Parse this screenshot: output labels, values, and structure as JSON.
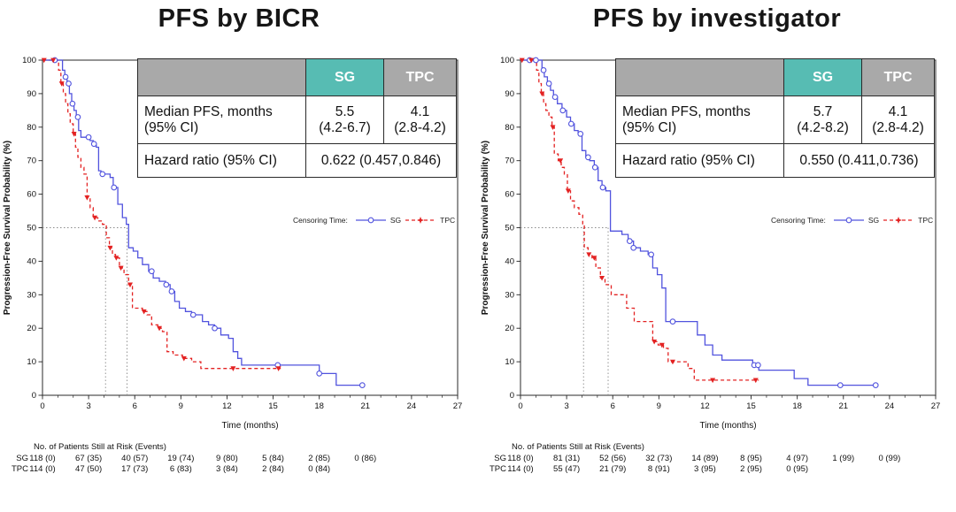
{
  "colors": {
    "sg_blue": "#5153de",
    "tpc_red": "#e32222",
    "table_teal": "#57bcb3",
    "table_gray": "#a9a9a9",
    "frame": "#4d4d4d",
    "reference_dotted": "#8a8a8a"
  },
  "legend": {
    "label": "Censoring Time:",
    "sg": "SG",
    "tpc": "TPC"
  },
  "panels": [
    {
      "table": {
        "sg_header": "SG",
        "tpc_header": "TPC",
        "median_label_1": "Median PFS, months",
        "median_label_2": "(95% CI)",
        "median_sg_1": "5.5",
        "median_sg_2": "(4.2-6.7)",
        "median_tpc_1": "4.1",
        "median_tpc_2": "(2.8-4.2)",
        "hr_label": "Hazard ratio (95% CI)",
        "hr_value": "0.622 (0.457,0.846)"
      }
    },
    {
      "table": {
        "sg_header": "SG",
        "tpc_header": "TPC",
        "median_label_1": "Median PFS, months",
        "median_label_2": "(95% CI)",
        "median_sg_1": "5.7",
        "median_sg_2": "(4.2-8.2)",
        "median_tpc_1": "4.1",
        "median_tpc_2": "(2.8-4.2)",
        "hr_label": "Hazard ratio (95% CI)",
        "hr_value": "0.550 (0.411,0.736)"
      }
    }
  ],
  "chart_data": [
    {
      "type": "line",
      "subtype": "kaplan-meier-step",
      "title": "PFS by BICR",
      "xlabel": "Time (months)",
      "ylabel": "Progression-Free Survival Probability (%)",
      "xlim": [
        0,
        27
      ],
      "ylim": [
        0,
        100
      ],
      "x_ticks": [
        0,
        3,
        6,
        9,
        12,
        15,
        18,
        21,
        24,
        27
      ],
      "y_ticks": [
        0,
        10,
        20,
        30,
        40,
        50,
        60,
        70,
        80,
        90,
        100
      ],
      "medians": {
        "sg_months": 5.5,
        "tpc_months": 4.1,
        "reference_pct": 50
      },
      "series": [
        {
          "name": "SG",
          "color": "#5153de",
          "style": "solid",
          "marker": "circle",
          "steps": [
            [
              0,
              100
            ],
            [
              1.1,
              100
            ],
            [
              1.3,
              97
            ],
            [
              1.45,
              95
            ],
            [
              1.6,
              93
            ],
            [
              1.75,
              90
            ],
            [
              1.9,
              87
            ],
            [
              2.05,
              85
            ],
            [
              2.2,
              83
            ],
            [
              2.35,
              79
            ],
            [
              2.5,
              77
            ],
            [
              3.1,
              76
            ],
            [
              3.3,
              75
            ],
            [
              3.5,
              74
            ],
            [
              3.65,
              67
            ],
            [
              3.8,
              66
            ],
            [
              4.4,
              65
            ],
            [
              4.6,
              62
            ],
            [
              4.9,
              57
            ],
            [
              5.2,
              53
            ],
            [
              5.45,
              51
            ],
            [
              5.6,
              44
            ],
            [
              5.9,
              43
            ],
            [
              6.2,
              41
            ],
            [
              6.5,
              39
            ],
            [
              6.9,
              37
            ],
            [
              7.2,
              35
            ],
            [
              7.6,
              34
            ],
            [
              8.0,
              33
            ],
            [
              8.3,
              31
            ],
            [
              8.6,
              28
            ],
            [
              8.9,
              26
            ],
            [
              9.3,
              25
            ],
            [
              9.7,
              24
            ],
            [
              10.4,
              22
            ],
            [
              10.8,
              21
            ],
            [
              11.2,
              20
            ],
            [
              11.6,
              18
            ],
            [
              12.1,
              17
            ],
            [
              12.4,
              13
            ],
            [
              12.7,
              11
            ],
            [
              12.95,
              9
            ],
            [
              18.0,
              6.5
            ],
            [
              19.1,
              3
            ],
            [
              20.9,
              3
            ]
          ],
          "censor_times": [
            0.8,
            1.5,
            1.7,
            1.95,
            2.3,
            3.0,
            3.35,
            3.9,
            4.65,
            7.1,
            8.05,
            8.4,
            9.8,
            11.2,
            15.3,
            18.0,
            20.8
          ]
        },
        {
          "name": "TPC",
          "color": "#e32222",
          "style": "dashed",
          "marker": "triangle",
          "steps": [
            [
              0,
              100
            ],
            [
              0.9,
              100
            ],
            [
              1.05,
              97
            ],
            [
              1.2,
              93
            ],
            [
              1.35,
              90
            ],
            [
              1.5,
              87
            ],
            [
              1.65,
              84
            ],
            [
              1.8,
              81
            ],
            [
              2.0,
              78
            ],
            [
              2.15,
              74
            ],
            [
              2.3,
              71
            ],
            [
              2.5,
              68
            ],
            [
              2.7,
              66
            ],
            [
              2.9,
              59
            ],
            [
              3.1,
              56
            ],
            [
              3.3,
              53
            ],
            [
              3.6,
              52
            ],
            [
              3.9,
              51
            ],
            [
              4.15,
              47
            ],
            [
              4.35,
              44
            ],
            [
              4.55,
              42
            ],
            [
              4.75,
              41
            ],
            [
              5.0,
              38
            ],
            [
              5.3,
              36
            ],
            [
              5.6,
              33
            ],
            [
              5.85,
              26
            ],
            [
              6.5,
              25
            ],
            [
              6.8,
              24
            ],
            [
              7.1,
              21
            ],
            [
              7.5,
              20
            ],
            [
              7.8,
              19
            ],
            [
              8.1,
              13
            ],
            [
              8.5,
              12
            ],
            [
              9.1,
              11
            ],
            [
              9.7,
              10
            ],
            [
              10.3,
              8
            ],
            [
              15.5,
              8
            ]
          ],
          "censor_times": [
            0.1,
            0.7,
            1.25,
            2.05,
            2.9,
            3.4,
            4.4,
            4.8,
            5.1,
            5.7,
            6.6,
            7.6,
            9.2,
            12.4,
            15.35
          ]
        }
      ],
      "risk_table": {
        "header": "No. of Patients Still at Risk (Events)",
        "time_points": [
          0,
          3,
          6,
          9,
          12,
          15,
          18,
          21
        ],
        "rows": [
          {
            "label": "SG",
            "values": [
              "118 (0)",
              "67 (35)",
              "40 (57)",
              "19 (74)",
              "9 (80)",
              "5 (84)",
              "2 (85)",
              "0 (86)"
            ]
          },
          {
            "label": "TPC",
            "values": [
              "114 (0)",
              "47 (50)",
              "17 (73)",
              "6 (83)",
              "3 (84)",
              "2 (84)",
              "0 (84)"
            ]
          }
        ]
      }
    },
    {
      "type": "line",
      "subtype": "kaplan-meier-step",
      "title": "PFS by investigator",
      "xlabel": "Time (months)",
      "ylabel": "Progression-Free Survival Probability (%)",
      "xlim": [
        0,
        27
      ],
      "ylim": [
        0,
        100
      ],
      "x_ticks": [
        0,
        3,
        6,
        9,
        12,
        15,
        18,
        21,
        24,
        27
      ],
      "y_ticks": [
        0,
        10,
        20,
        30,
        40,
        50,
        60,
        70,
        80,
        90,
        100
      ],
      "medians": {
        "sg_months": 5.7,
        "tpc_months": 4.1,
        "reference_pct": 50
      },
      "series": [
        {
          "name": "SG",
          "color": "#5153de",
          "style": "solid",
          "marker": "circle",
          "steps": [
            [
              0,
              100
            ],
            [
              1.25,
              100
            ],
            [
              1.4,
              97
            ],
            [
              1.55,
              95
            ],
            [
              1.75,
              93
            ],
            [
              1.95,
              91
            ],
            [
              2.15,
              89
            ],
            [
              2.4,
              87
            ],
            [
              2.7,
              85
            ],
            [
              3.0,
              83
            ],
            [
              3.25,
              81
            ],
            [
              3.5,
              79
            ],
            [
              3.75,
              78
            ],
            [
              4.0,
              73
            ],
            [
              4.25,
              71
            ],
            [
              4.5,
              70
            ],
            [
              4.8,
              68
            ],
            [
              5.05,
              64
            ],
            [
              5.3,
              62
            ],
            [
              5.55,
              61
            ],
            [
              5.85,
              49
            ],
            [
              6.6,
              48
            ],
            [
              7.0,
              46
            ],
            [
              7.35,
              44
            ],
            [
              7.8,
              43
            ],
            [
              8.3,
              42
            ],
            [
              8.6,
              38
            ],
            [
              8.9,
              36
            ],
            [
              9.2,
              32
            ],
            [
              9.45,
              22
            ],
            [
              11.5,
              18
            ],
            [
              12.0,
              15
            ],
            [
              12.5,
              12
            ],
            [
              13.1,
              10.5
            ],
            [
              15.1,
              9
            ],
            [
              15.5,
              7.5
            ],
            [
              17.8,
              5
            ],
            [
              18.7,
              3
            ],
            [
              23.2,
              3
            ]
          ],
          "censor_times": [
            0.6,
            1.0,
            1.5,
            1.85,
            2.25,
            2.75,
            3.3,
            3.9,
            4.4,
            4.85,
            5.35,
            7.1,
            7.35,
            8.5,
            9.9,
            15.2,
            15.45,
            20.8,
            23.1
          ]
        },
        {
          "name": "TPC",
          "color": "#e32222",
          "style": "dashed",
          "marker": "triangle",
          "steps": [
            [
              0,
              100
            ],
            [
              0.9,
              100
            ],
            [
              1.05,
              97
            ],
            [
              1.2,
              93
            ],
            [
              1.35,
              90
            ],
            [
              1.5,
              87
            ],
            [
              1.65,
              85
            ],
            [
              1.85,
              83
            ],
            [
              2.05,
              80
            ],
            [
              2.2,
              72
            ],
            [
              2.45,
              70
            ],
            [
              2.65,
              68
            ],
            [
              2.85,
              66
            ],
            [
              3.05,
              61
            ],
            [
              3.25,
              58
            ],
            [
              3.5,
              56
            ],
            [
              3.8,
              54
            ],
            [
              4.05,
              51
            ],
            [
              4.15,
              44
            ],
            [
              4.4,
              42
            ],
            [
              4.65,
              41
            ],
            [
              4.9,
              38
            ],
            [
              5.2,
              35
            ],
            [
              5.5,
              33
            ],
            [
              5.9,
              30
            ],
            [
              6.9,
              26
            ],
            [
              7.4,
              22
            ],
            [
              8.6,
              16
            ],
            [
              8.95,
              15
            ],
            [
              9.3,
              14
            ],
            [
              9.6,
              10
            ],
            [
              10.9,
              8
            ],
            [
              11.3,
              4.5
            ],
            [
              15.5,
              4.5
            ]
          ],
          "censor_times": [
            0.1,
            0.7,
            1.4,
            2.1,
            2.6,
            3.1,
            4.45,
            4.8,
            5.3,
            8.7,
            9.2,
            9.9,
            12.5,
            15.3
          ]
        }
      ],
      "risk_table": {
        "header": "No. of Patients Still at Risk (Events)",
        "time_points": [
          0,
          3,
          6,
          9,
          12,
          15,
          18,
          21,
          24
        ],
        "rows": [
          {
            "label": "SG",
            "values": [
              "118 (0)",
              "81 (31)",
              "52 (56)",
              "32 (73)",
              "14 (89)",
              "8 (95)",
              "4 (97)",
              "1 (99)",
              "0 (99)"
            ]
          },
          {
            "label": "TPC",
            "values": [
              "114 (0)",
              "55 (47)",
              "21 (79)",
              "8 (91)",
              "3 (95)",
              "2 (95)",
              "0 (95)"
            ]
          }
        ]
      }
    }
  ]
}
